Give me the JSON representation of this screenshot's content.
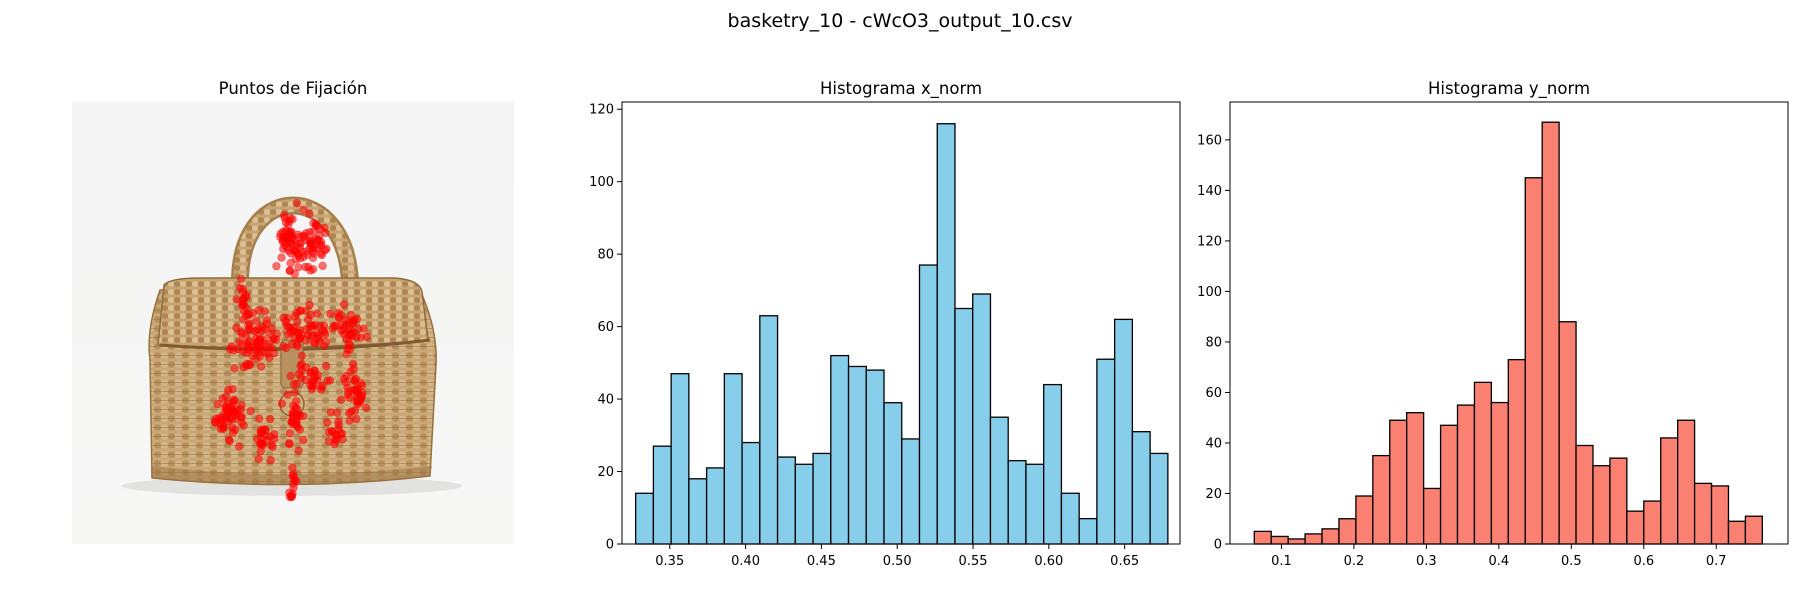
{
  "figure": {
    "suptitle": "basketry_10 - cWcO3_output_10.csv"
  },
  "panels": {
    "image_title": "Puntos de Fijación"
  },
  "colors": {
    "x_hist": "#87ceeb",
    "y_hist": "#fa8072",
    "fixation": "#ff0000",
    "edge": "#000000"
  },
  "chart_data": [
    {
      "type": "scatter",
      "title": "Puntos de Fijación",
      "image_subject": "woven basket bag",
      "point_color": "#ff0000"
    },
    {
      "type": "bar",
      "title": "Histograma x_norm",
      "xlabel": "",
      "ylabel": "",
      "xlim": [
        0.3185,
        0.6865
      ],
      "ylim": [
        0,
        122
      ],
      "xticks": [
        0.35,
        0.4,
        0.45,
        0.5,
        0.55,
        0.6,
        0.65
      ],
      "xtick_labels": [
        "0.35",
        "0.40",
        "0.45",
        "0.50",
        "0.55",
        "0.60",
        "0.65"
      ],
      "yticks": [
        0,
        20,
        40,
        60,
        80,
        100,
        120
      ],
      "bin_start": 0.3275,
      "bin_width": 0.0117,
      "values": [
        14,
        27,
        47,
        18,
        21,
        47,
        28,
        63,
        24,
        22,
        25,
        52,
        49,
        48,
        39,
        29,
        77,
        116,
        65,
        69,
        35,
        23,
        22,
        44,
        14,
        7,
        51,
        62,
        31,
        25
      ],
      "color": "#87ceeb"
    },
    {
      "type": "bar",
      "title": "Histograma y_norm",
      "xlabel": "",
      "ylabel": "",
      "xlim": [
        0.029,
        0.799
      ],
      "ylim": [
        0,
        175
      ],
      "xticks": [
        0.1,
        0.2,
        0.3,
        0.4,
        0.5,
        0.6,
        0.7
      ],
      "xtick_labels": [
        "0.1",
        "0.2",
        "0.3",
        "0.4",
        "0.5",
        "0.6",
        "0.7"
      ],
      "yticks": [
        0,
        20,
        40,
        60,
        80,
        100,
        120,
        140,
        160
      ],
      "bin_start": 0.0625,
      "bin_width": 0.02337,
      "values": [
        5,
        3,
        2,
        4,
        6,
        10,
        19,
        35,
        49,
        52,
        22,
        47,
        55,
        64,
        56,
        73,
        145,
        167,
        88,
        39,
        31,
        34,
        13,
        17,
        42,
        49,
        24,
        23,
        9,
        11
      ],
      "color": "#fa8072"
    }
  ]
}
